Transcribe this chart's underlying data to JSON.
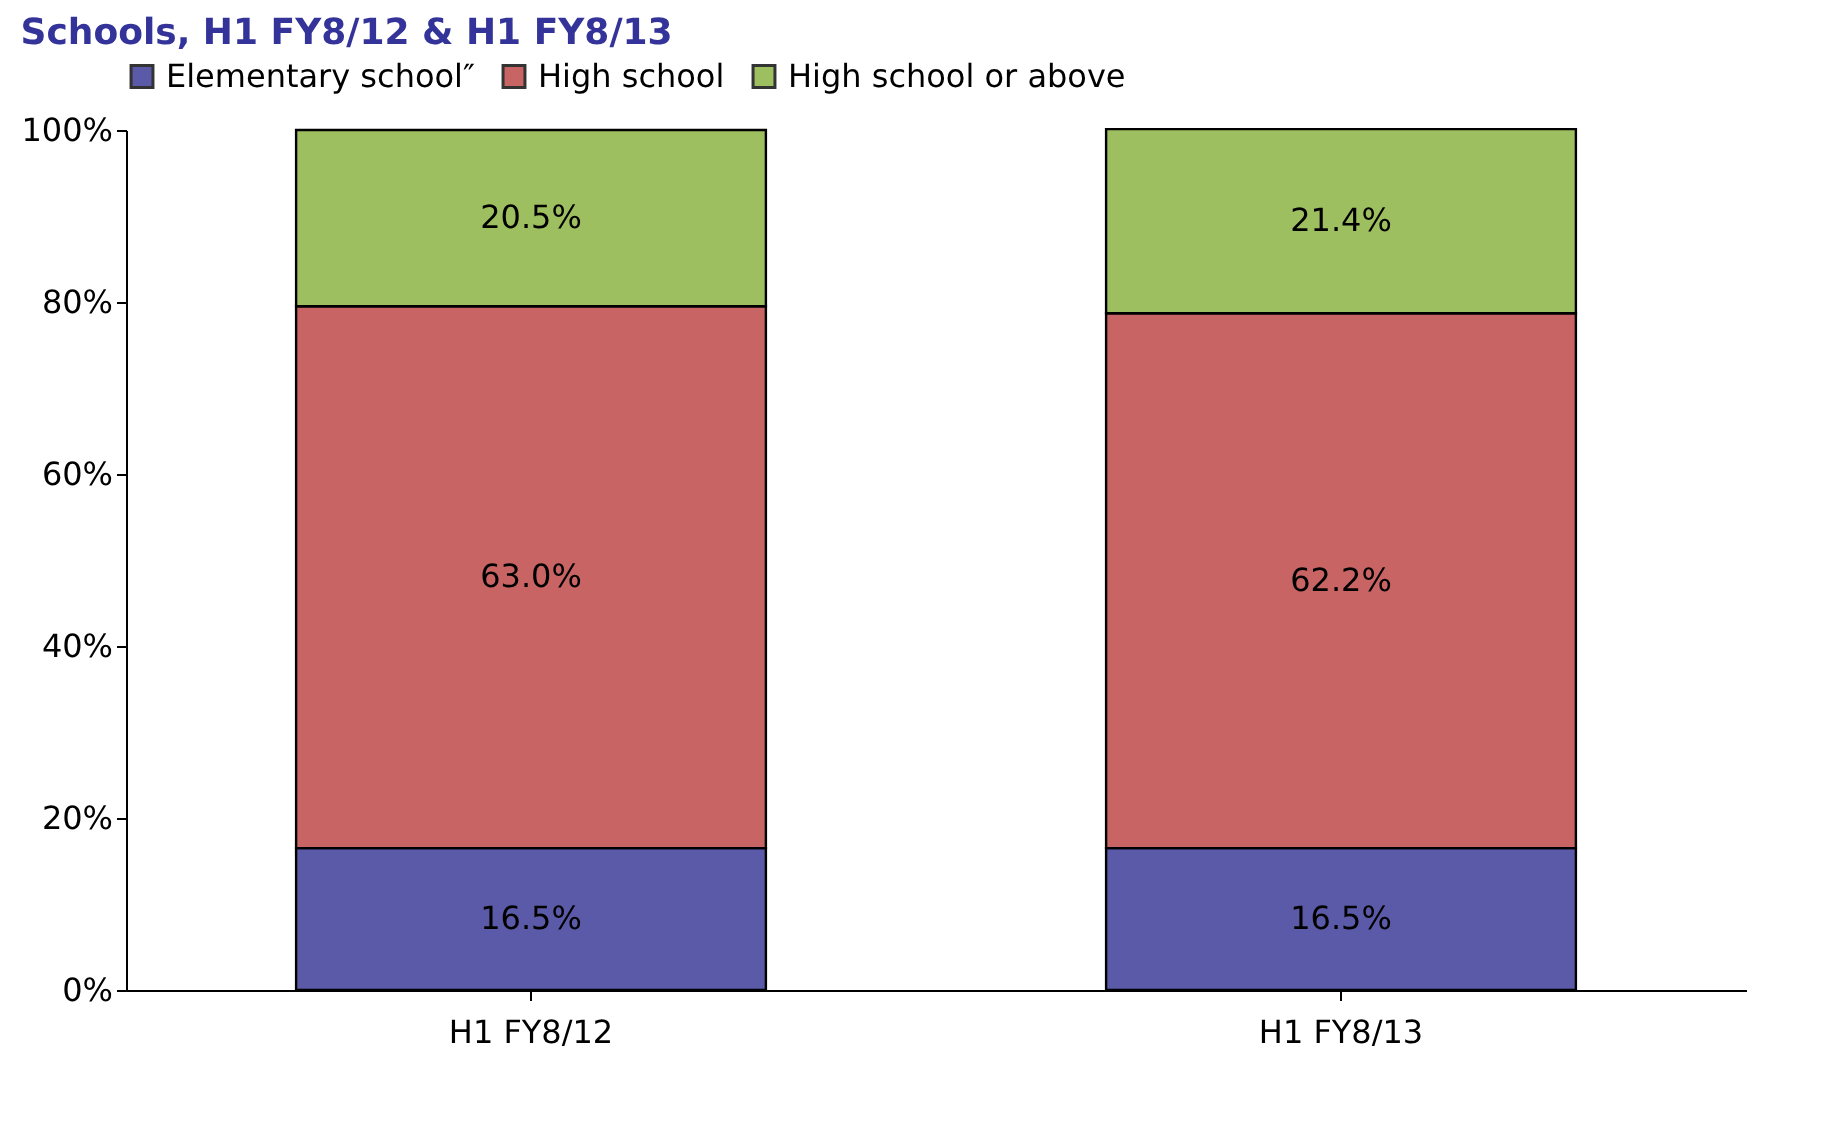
{
  "chart_data": {
    "type": "bar",
    "stacked": true,
    "title": "Schools, H1 FY8/12 & H1 FY8/13",
    "categories": [
      "H1 FY8/12",
      "H1 FY8/13"
    ],
    "series": [
      {
        "name": "Elementary school″",
        "color": "#5a5aa8",
        "values": [
          16.5,
          16.5
        ],
        "value_labels": [
          "16.5%",
          "16.5%"
        ]
      },
      {
        "name": "High school",
        "color": "#c86464",
        "values": [
          63.0,
          62.2
        ],
        "value_labels": [
          "63.0%",
          "62.2%"
        ]
      },
      {
        "name": "High school or above",
        "color": "#9ebf60",
        "values": [
          20.5,
          21.4
        ],
        "value_labels": [
          "20.5%",
          "21.4%"
        ]
      }
    ],
    "ylim": [
      0,
      100
    ],
    "yticks": [
      {
        "value": 0,
        "label": "0%"
      },
      {
        "value": 20,
        "label": "20%"
      },
      {
        "value": 40,
        "label": "40%"
      },
      {
        "value": 60,
        "label": "60%"
      },
      {
        "value": 80,
        "label": "80%"
      },
      {
        "value": 100,
        "label": "100%"
      }
    ],
    "grid": false,
    "legend": "top"
  }
}
